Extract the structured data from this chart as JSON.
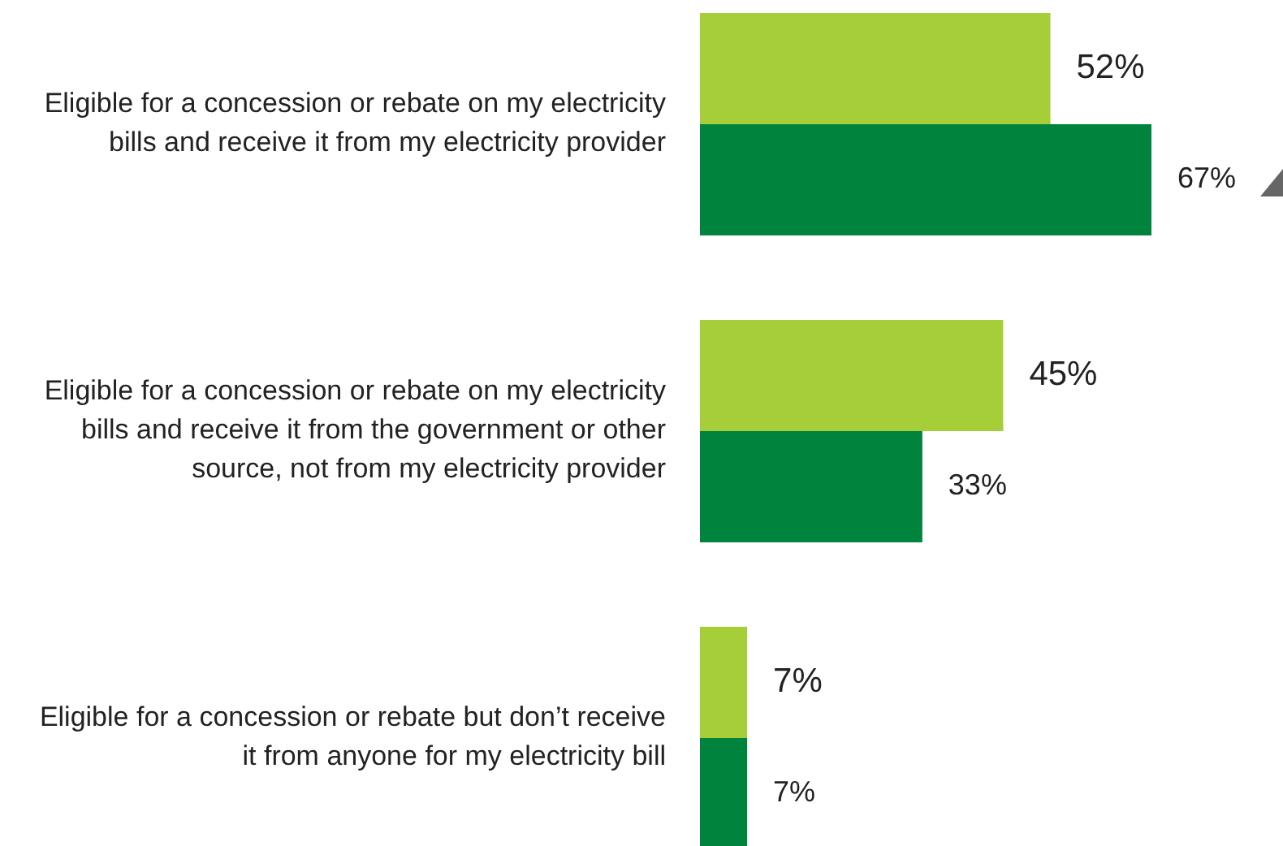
{
  "chart_data": {
    "type": "bar",
    "orientation": "horizontal",
    "data_labels": true,
    "categories": [
      "Eligible for a concession or rebate on my electricity bills and receive it from my electricity provider",
      "Eligible for a concession or rebate on my electricity bills and receive it from the government or other source, not from my electricity provider",
      "Eligible for a concession or rebate but don’t receive it from anyone for my electricity bill"
    ],
    "series": [
      {
        "color": "#a6ce39",
        "values": [
          52,
          45,
          7
        ],
        "value_labels": [
          "52%",
          "45%",
          "7%"
        ]
      },
      {
        "color": "#00843d",
        "values": [
          67,
          33,
          7
        ],
        "value_labels": [
          "67%",
          "33%",
          "7%"
        ]
      }
    ]
  }
}
